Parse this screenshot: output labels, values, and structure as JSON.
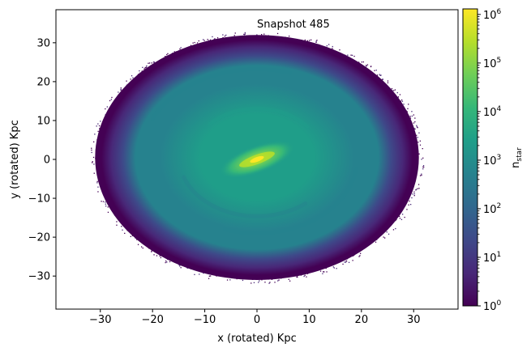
{
  "chart_data": {
    "type": "heatmap",
    "annotation": "Snapshot 485",
    "xlabel": "x (rotated) Kpc",
    "ylabel": "y (rotated) Kpc",
    "xlim": [
      -38.5,
      38.5
    ],
    "ylim": [
      -38.5,
      38.5
    ],
    "xticks": [
      -30,
      -20,
      -10,
      0,
      10,
      20,
      30
    ],
    "yticks": [
      -30,
      -20,
      -10,
      0,
      10,
      20,
      30
    ],
    "xtick_labels": [
      "−30",
      "−20",
      "−10",
      "0",
      "10",
      "20",
      "30"
    ],
    "ytick_labels": [
      "−30",
      "−20",
      "−10",
      "0",
      "10",
      "20",
      "30"
    ],
    "colorbar": {
      "scale": "log",
      "label_base": "n",
      "label_sub": "star",
      "ticks": [
        {
          "base": "10",
          "exp": "0",
          "value": 1
        },
        {
          "base": "10",
          "exp": "1",
          "value": 10
        },
        {
          "base": "10",
          "exp": "2",
          "value": 100
        },
        {
          "base": "10",
          "exp": "3",
          "value": 1000
        },
        {
          "base": "10",
          "exp": "4",
          "value": 10000
        },
        {
          "base": "10",
          "exp": "5",
          "value": 100000
        },
        {
          "base": "10",
          "exp": "6",
          "value": 1000000
        }
      ],
      "range": [
        1,
        1300000
      ],
      "colormap": [
        "#440154",
        "#482878",
        "#3e4989",
        "#31688e",
        "#26828e",
        "#1f9e89",
        "#35b779",
        "#6ece58",
        "#b5de2b",
        "#fde725"
      ]
    },
    "distribution": {
      "disk_center": [
        0,
        0
      ],
      "disk_radius_x": 31,
      "disk_radius_y_top": 32,
      "disk_radius_y_bottom": 31,
      "bar_angle_deg": 20,
      "bar_half_length": 4,
      "peak_density": 1000000,
      "edge_density": 1
    }
  }
}
